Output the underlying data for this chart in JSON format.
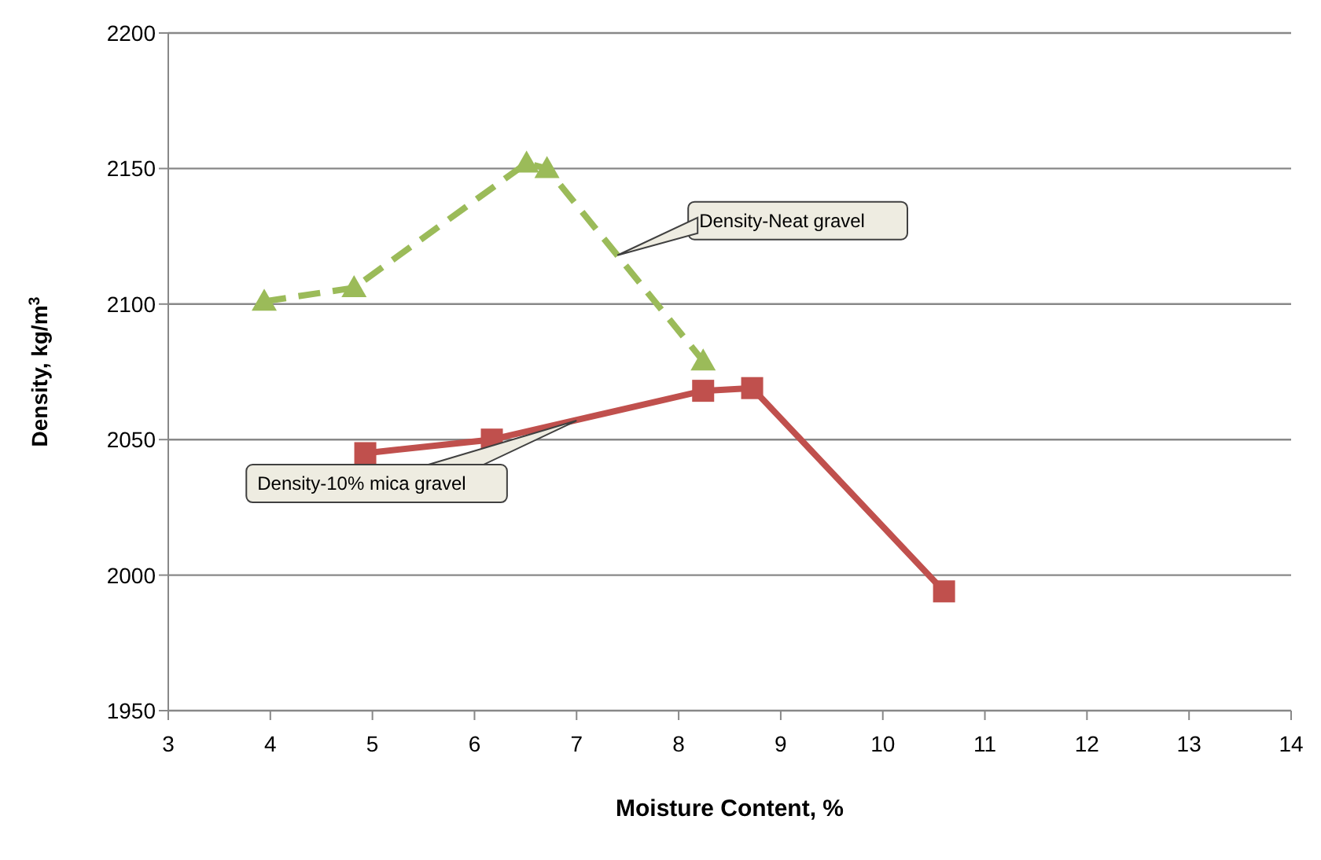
{
  "chart_data": {
    "type": "line",
    "xlabel": "Moisture Content, %",
    "ylabel": "Density, kg/m$^{3}$",
    "xlim": [
      3,
      14
    ],
    "xticks": [
      3,
      4,
      5,
      6,
      7,
      8,
      9,
      10,
      11,
      12,
      13,
      14
    ],
    "ylim": [
      1950,
      2200
    ],
    "yticks": [
      1950,
      2000,
      2050,
      2100,
      2150,
      2200
    ],
    "grid": "y",
    "series": [
      {
        "color": "#9bbb59",
        "x": [
          3.94,
          4.82,
          6.51,
          6.71,
          8.24
        ],
        "values": [
          2101,
          2106,
          2152,
          2150,
          2079
        ],
        "marker": "triangle",
        "line_style": "dashed"
      },
      {
        "color": "#c0504d",
        "x": [
          4.93,
          6.17,
          8.24,
          8.72,
          10.6
        ],
        "values": [
          2045,
          2050,
          2068,
          2069,
          1994
        ],
        "marker": "square",
        "line_style": "solid"
      }
    ],
    "annotations": [
      {
        "text": "Density-Neat gravel",
        "x": 7.4,
        "y": 2118
      },
      {
        "text": "Density-10% mica gravel",
        "x": 7.0,
        "y": 2057
      }
    ]
  }
}
